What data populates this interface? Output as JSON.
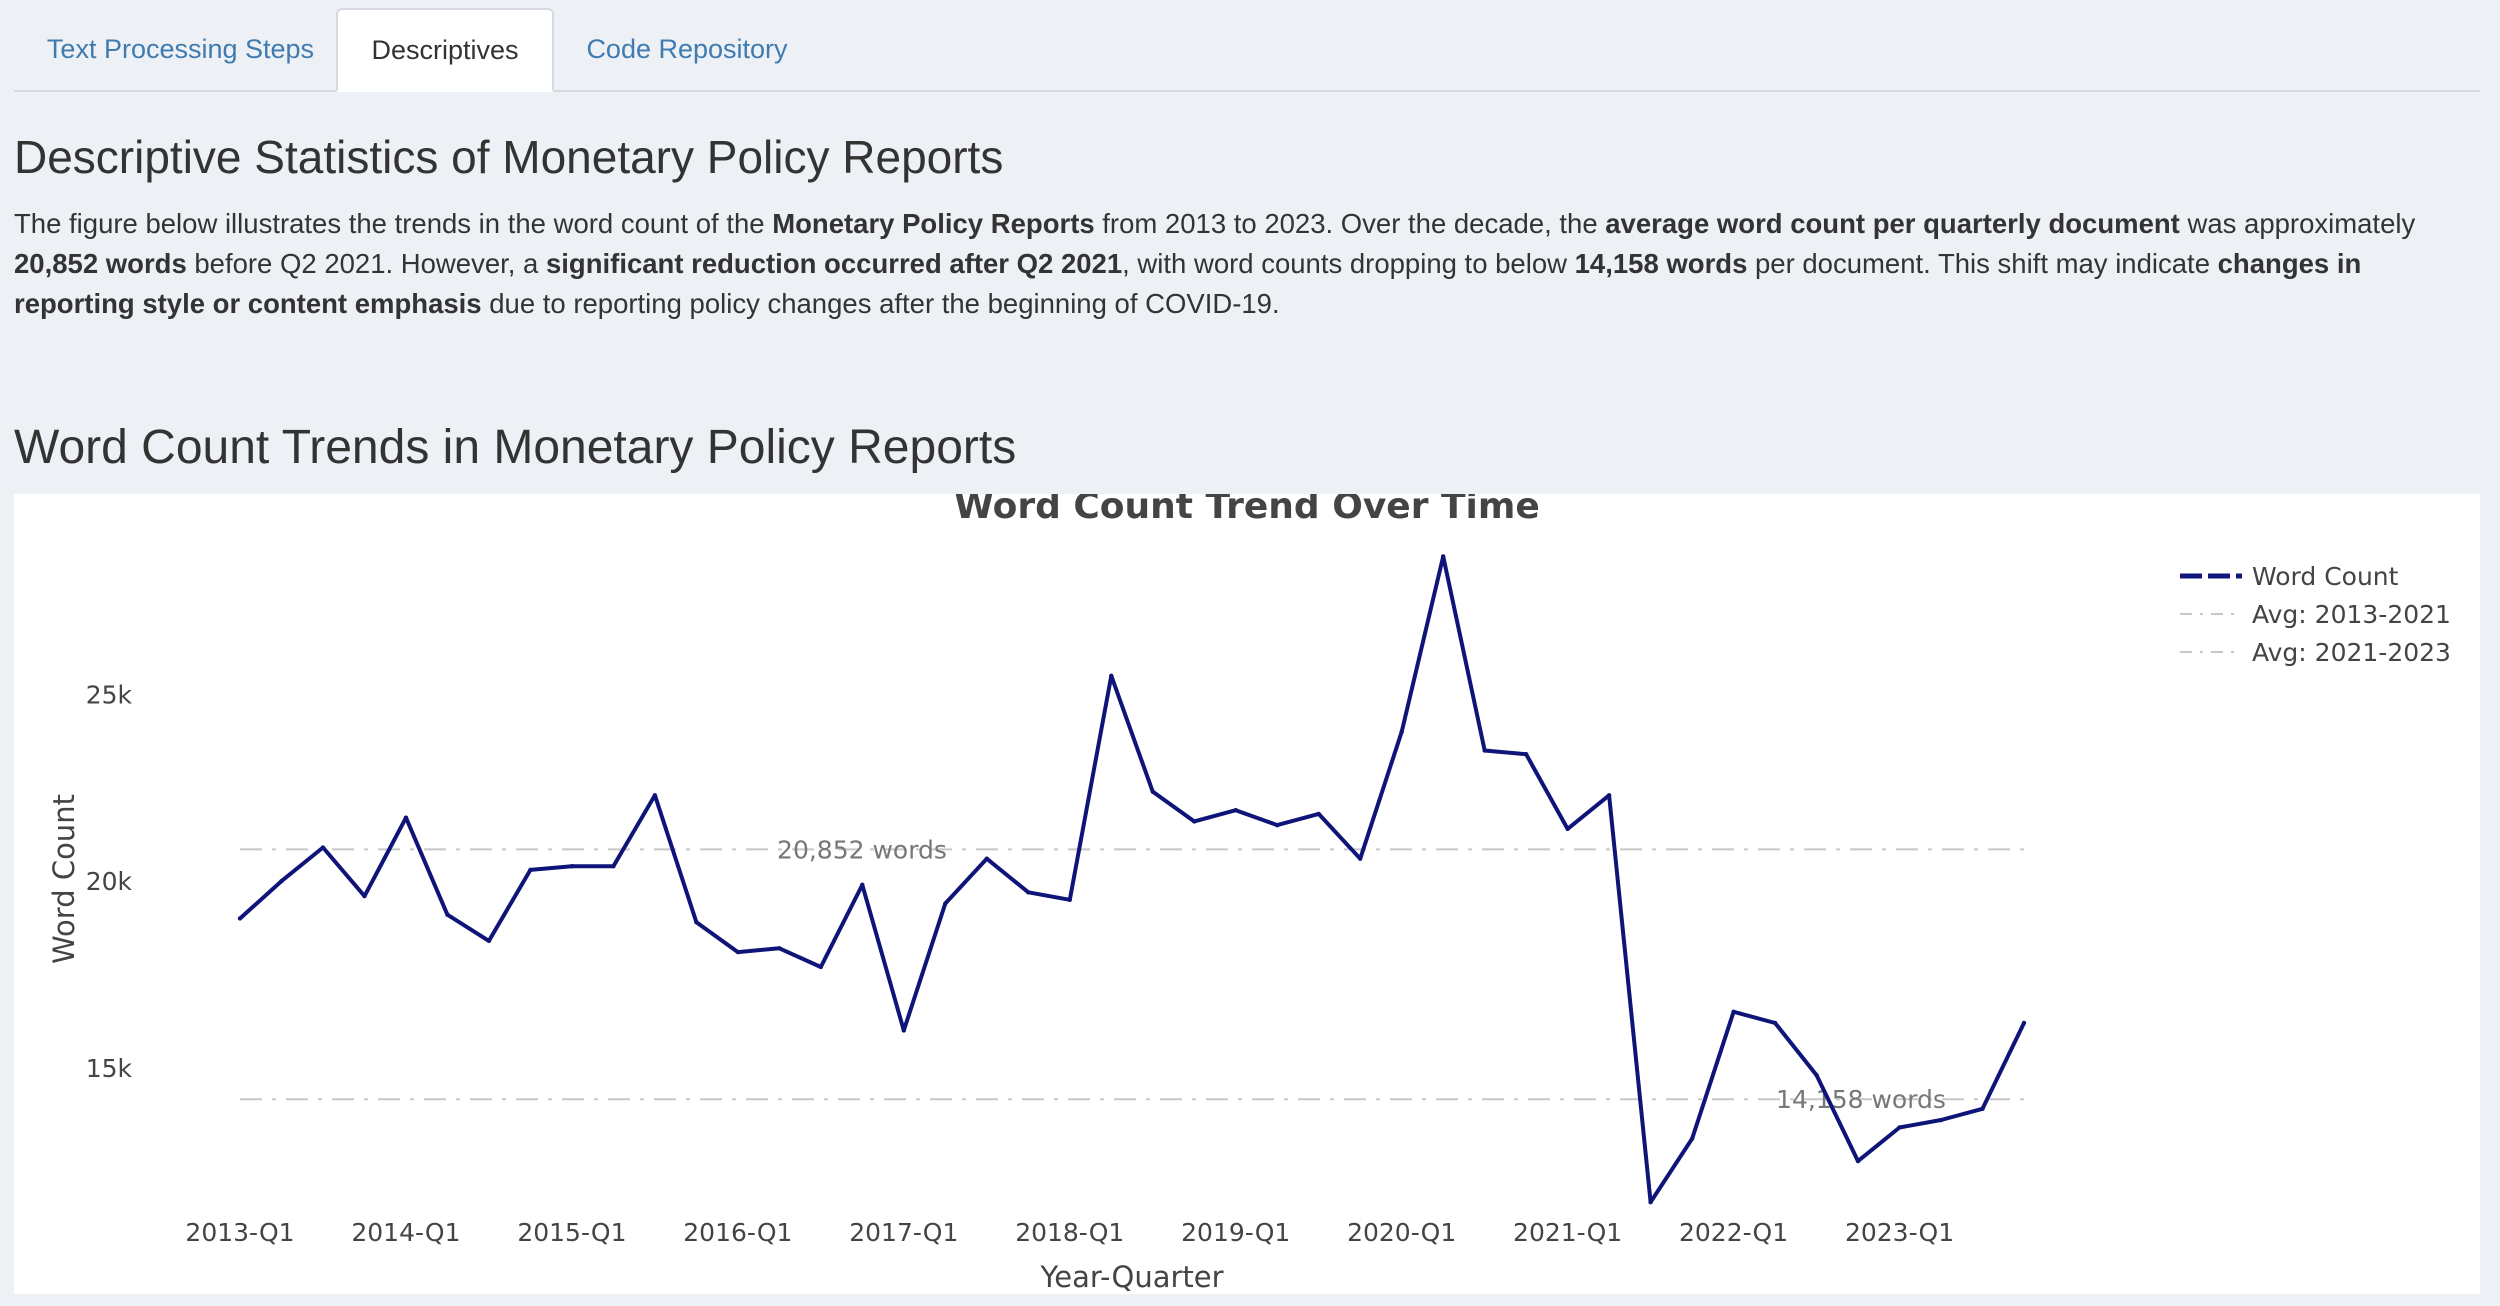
{
  "tabs": [
    {
      "label": "Text Processing Steps"
    },
    {
      "label": "Descriptives"
    },
    {
      "label": "Code Repository"
    }
  ],
  "section_title": "Descriptive Statistics of Monetary Policy Reports",
  "description": {
    "s1": "The figure below illustrates the trends in the word count of the ",
    "b1": "Monetary Policy Reports",
    "s2": " from 2013 to 2023. Over the decade, the ",
    "b2": "average word count per quarterly document",
    "s3": " was approximately ",
    "b3": "20,852 words",
    "s4": " before Q2 2021. However, a ",
    "b4": "significant reduction occurred after Q2 2021",
    "s5": ", with word counts dropping to below ",
    "b5": "14,158 words",
    "s6": " per document. This shift may indicate ",
    "b6": "changes in reporting style or content emphasis",
    "s7": " due to reporting policy changes after the beginning of COVID-19."
  },
  "chart_section_title": "Word Count Trends in Monetary Policy Reports",
  "colors": {
    "line": "#0f1478",
    "avg_line": "#c8c8c8",
    "annotation_text": "#777777",
    "tab_link": "#3f7bb0"
  },
  "chart_data": {
    "type": "line",
    "title": "Word Count Trend Over Time",
    "xlabel": "Year-Quarter",
    "ylabel": "Word Count",
    "x_tick_labels": [
      "2013-Q1",
      "2014-Q1",
      "2015-Q1",
      "2016-Q1",
      "2017-Q1",
      "2018-Q1",
      "2019-Q1",
      "2020-Q1",
      "2021-Q1",
      "2022-Q1",
      "2023-Q1"
    ],
    "y_ticks": [
      15000,
      20000,
      25000
    ],
    "y_tick_labels": [
      "15k",
      "20k",
      "25k"
    ],
    "ylim": [
      10600,
      29300
    ],
    "grid": false,
    "legend_position": "top-right",
    "legend": [
      "Word Count",
      "Avg: 2013-2021",
      "Avg: 2021-2023"
    ],
    "x": [
      "2013-Q1",
      "2013-Q2",
      "2013-Q3",
      "2013-Q4",
      "2014-Q1",
      "2014-Q2",
      "2014-Q3",
      "2014-Q4",
      "2015-Q1",
      "2015-Q2",
      "2015-Q3",
      "2015-Q4",
      "2016-Q1",
      "2016-Q2",
      "2016-Q3",
      "2016-Q4",
      "2017-Q1",
      "2017-Q2",
      "2017-Q3",
      "2017-Q4",
      "2018-Q1",
      "2018-Q2",
      "2018-Q3",
      "2018-Q4",
      "2019-Q1",
      "2019-Q2",
      "2019-Q3",
      "2019-Q4",
      "2020-Q1",
      "2020-Q2",
      "2020-Q3",
      "2020-Q4",
      "2021-Q1",
      "2021-Q2",
      "2021-Q3",
      "2021-Q4",
      "2022-Q1",
      "2022-Q2",
      "2022-Q3",
      "2022-Q4",
      "2023-Q1",
      "2023-Q2",
      "2023-Q3",
      "2023-Q4"
    ],
    "series": [
      {
        "name": "Word Count",
        "values": [
          19000,
          20000,
          20900,
          19600,
          21700,
          19100,
          18400,
          20300,
          20400,
          20400,
          22300,
          18900,
          18100,
          18200,
          17700,
          19900,
          16000,
          19400,
          20600,
          19700,
          19500,
          25500,
          22400,
          21600,
          21900,
          21500,
          21800,
          20600,
          24000,
          28700,
          23500,
          23400,
          21400,
          22300,
          11400,
          13100,
          16500,
          16200,
          14800,
          12500,
          13400,
          13600,
          13900,
          16200
        ]
      },
      {
        "name": "Avg: 2013-2021",
        "value": 20852,
        "annotation": "20,852 words"
      },
      {
        "name": "Avg: 2021-2023",
        "value": 14158,
        "annotation": "14,158 words"
      }
    ]
  }
}
